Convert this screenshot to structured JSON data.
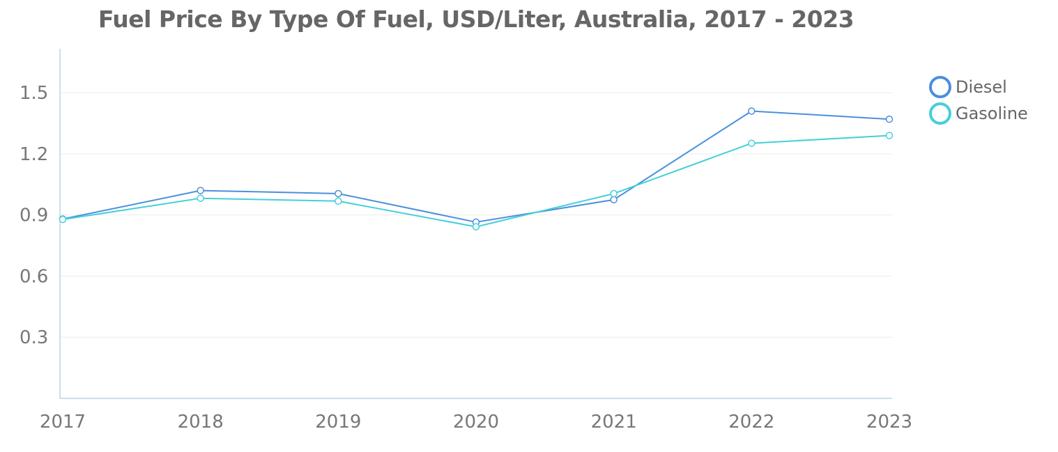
{
  "chart_data": {
    "type": "line",
    "title": "Fuel Price By Type Of Fuel, USD/Liter, Australia, 2017 - 2023",
    "xlabel": "",
    "ylabel": "",
    "x": [
      "2017",
      "2018",
      "2019",
      "2020",
      "2021",
      "2022",
      "2023"
    ],
    "ylim": [
      0,
      1.75
    ],
    "yticks": [
      0.3,
      0.6,
      0.9,
      1.2,
      1.5
    ],
    "ytick_labels": [
      "0.3",
      "0.6",
      "0.9",
      "1.2",
      "1.5"
    ],
    "grid": true,
    "legend_position": "top-right",
    "series": [
      {
        "name": "Diesel",
        "color": "#4a8fdc",
        "values": [
          0.88,
          1.02,
          1.005,
          0.865,
          0.975,
          1.41,
          1.37
        ]
      },
      {
        "name": "Gasoline",
        "color": "#45cfd9",
        "values": [
          0.878,
          0.982,
          0.968,
          0.842,
          1.005,
          1.252,
          1.29
        ]
      }
    ]
  }
}
